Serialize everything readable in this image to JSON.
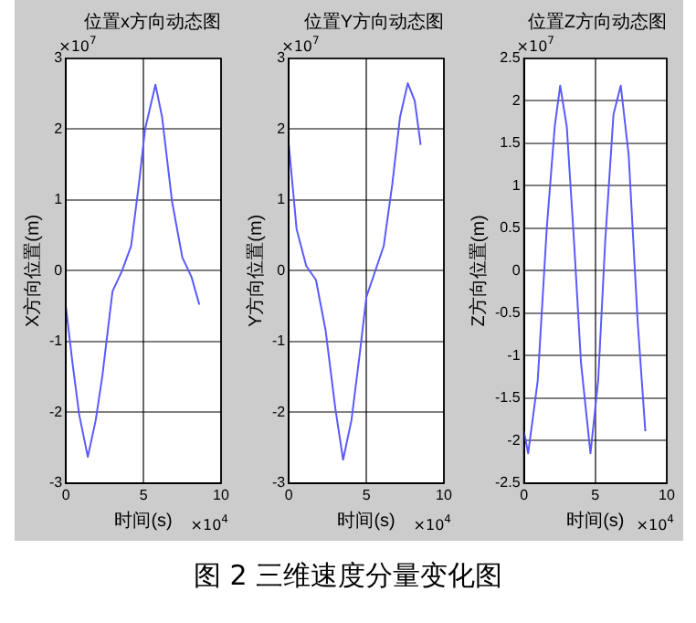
{
  "chart_data": [
    {
      "type": "line",
      "title": "位置x方向动态图",
      "xlabel": "时间(s)",
      "ylabel": "X方向位置(m)",
      "annotations": [
        "×10$^{7}$",
        "×10$^{4}$"
      ],
      "xlim": [
        0,
        10
      ],
      "xticks": [
        0,
        5,
        10
      ],
      "ylim": [
        -3,
        3
      ],
      "yticks": [
        -3,
        -2,
        -1,
        0,
        1,
        2,
        3
      ],
      "grid": true,
      "marker": "none",
      "line_style": "solid",
      "series": [
        {
          "color": "#5a5aff",
          "x": [
            0,
            0.43,
            0.85,
            1.41,
            1.92,
            2.35,
            3.0,
            3.6,
            4.2,
            4.7,
            5.1,
            5.77,
            6.2,
            6.84,
            7.5,
            8.1,
            8.6
          ],
          "values": [
            -0.52,
            -1.32,
            -2.03,
            -2.63,
            -2.11,
            -1.48,
            -0.29,
            -0.01,
            0.35,
            1.22,
            2.0,
            2.63,
            2.17,
            0.98,
            0.19,
            -0.09,
            -0.48
          ]
        }
      ]
    },
    {
      "type": "line",
      "title": "位置Y方向动态图",
      "xlabel": "时间(s)",
      "ylabel": "Y方向位置(m)",
      "annotations": [
        "×10$^{7}$",
        "×10$^{4}$",
        "图 2  三维速度分量变化图"
      ],
      "xlim": [
        0,
        10
      ],
      "xticks": [
        0,
        5,
        10
      ],
      "ylim": [
        -3,
        3
      ],
      "yticks": [
        -3,
        -2,
        -1,
        0,
        1,
        2,
        3
      ],
      "grid": true,
      "marker": "none",
      "line_style": "solid",
      "series": [
        {
          "color": "#5a5aff",
          "x": [
            0,
            0.5,
            1.12,
            1.75,
            2.37,
            3.0,
            3.5,
            4.04,
            4.58,
            5.0,
            5.5,
            6.12,
            6.67,
            7.17,
            7.67,
            8.12,
            8.5
          ],
          "values": [
            1.78,
            0.59,
            0.07,
            -0.13,
            -0.84,
            -1.95,
            -2.67,
            -2.11,
            -1.16,
            -0.37,
            -0.05,
            0.35,
            1.22,
            2.17,
            2.65,
            2.4,
            1.78
          ]
        }
      ]
    },
    {
      "type": "line",
      "title": "位置Z方向动态图",
      "xlabel": "时间(s)",
      "ylabel": "Z方向位置(m)",
      "annotations": [
        "×10$^{7}$",
        "×10$^{4}$"
      ],
      "xlim": [
        0,
        10
      ],
      "xticks": [
        0,
        5,
        10
      ],
      "ylim": [
        -2.5,
        2.5
      ],
      "yticks": [
        -2.5,
        -2,
        -1.5,
        -1,
        -0.5,
        0,
        0.5,
        1,
        1.5,
        2,
        2.5
      ],
      "grid": true,
      "marker": "none",
      "line_style": "solid",
      "series": [
        {
          "color": "#5a5aff",
          "x": [
            0,
            0.3,
            0.97,
            1.6,
            2.16,
            2.54,
            3.0,
            3.5,
            4.0,
            4.66,
            5.2,
            5.7,
            6.27,
            6.78,
            7.33,
            7.97,
            8.5
          ],
          "values": [
            -1.89,
            -2.15,
            -1.29,
            0.5,
            1.7,
            2.18,
            1.7,
            0.37,
            -1.09,
            -2.15,
            -1.29,
            0.37,
            1.84,
            2.18,
            1.37,
            -0.62,
            -1.89
          ]
        }
      ]
    }
  ]
}
